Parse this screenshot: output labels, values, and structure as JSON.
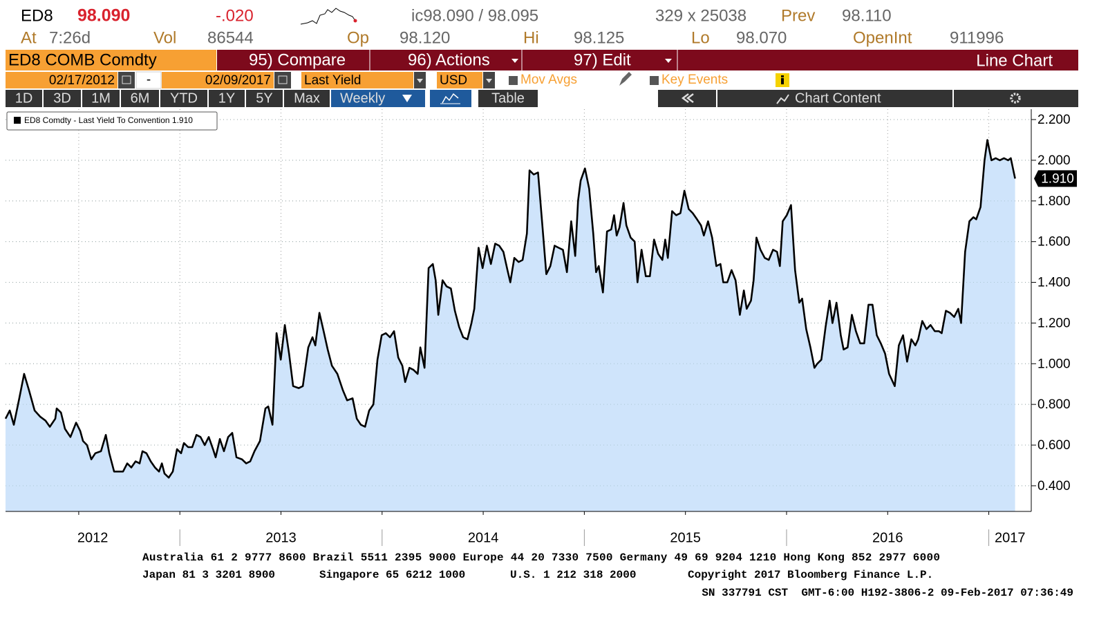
{
  "header": {
    "ticker": "ED8",
    "price": "98.090",
    "change": "-.020",
    "bidask": "ic98.090 / 98.095",
    "size": "329 x 25038",
    "prev_label": "Prev",
    "prev": "98.110",
    "time_label": "At",
    "time": "7:26d",
    "vol_label": "Vol",
    "vol": "86544",
    "op_label": "Op",
    "op": "98.120",
    "hi_label": "Hi",
    "hi": "98.125",
    "lo_label": "Lo",
    "lo": "98.070",
    "oi_label": "OpenInt",
    "oi": "911996"
  },
  "menu": {
    "security": "ED8 COMB Comdty",
    "compare": "95) Compare",
    "actions": "96) Actions",
    "edit": "97) Edit",
    "view": "Line Chart"
  },
  "controls": {
    "start": "02/17/2012",
    "sep": "-",
    "end": "02/09/2017",
    "field": "Last Yield",
    "currency": "USD",
    "mov_avgs": "Mov Avgs",
    "key_events": "Key Events"
  },
  "toolbar": {
    "ranges": [
      "1D",
      "3D",
      "1M",
      "6M",
      "YTD",
      "1Y",
      "5Y",
      "Max"
    ],
    "frequency": "Weekly",
    "table": "Table",
    "chart_content": "Chart Content"
  },
  "chart_data": {
    "type": "line",
    "xlim": [
      2012.138,
      2017.21
    ],
    "xticks": [
      2013,
      2014,
      2015,
      2016,
      2017
    ],
    "xgrid": [
      2012.5,
      2013,
      2013.5,
      2014,
      2014.5,
      2015,
      2015.5,
      2016,
      2016.5,
      2017
    ],
    "year_labels": [
      "2012",
      "2013",
      "2014",
      "2015",
      "2016",
      "2017"
    ],
    "ylim": [
      0.274,
      2.251
    ],
    "yticks": [
      {
        "value": 0.4,
        "label": "0.400"
      },
      {
        "value": 0.6,
        "label": "0.600"
      },
      {
        "value": 0.8,
        "label": "0.800"
      },
      {
        "value": 1.0,
        "label": "1.000"
      },
      {
        "value": 1.2,
        "label": "1.200"
      },
      {
        "value": 1.4,
        "label": "1.400"
      },
      {
        "value": 1.6,
        "label": "1.600"
      },
      {
        "value": 1.8,
        "label": "1.800"
      },
      {
        "value": 2.0,
        "label": "2.000"
      },
      {
        "value": 2.2,
        "label": "2.200"
      }
    ],
    "grid": true,
    "fill_color": "#cfe4fb",
    "series": [
      {
        "name": "ED8 Comdty - Last Yield To Convention 1.910",
        "color": "#000000",
        "last_label": "1.910",
        "x": [
          2012.138,
          2012.159,
          2012.179,
          2012.206,
          2012.23,
          2012.254,
          2012.282,
          2012.309,
          2012.336,
          2012.357,
          2012.384,
          2012.391,
          2012.412,
          2012.432,
          2012.459,
          2012.487,
          2012.507,
          2012.521,
          2012.541,
          2012.562,
          2012.582,
          2012.61,
          2012.634,
          2012.651,
          2012.675,
          2012.699,
          2012.719,
          2012.74,
          2012.76,
          2012.781,
          2012.801,
          2012.815,
          2012.835,
          2012.856,
          2012.877,
          2012.897,
          2012.911,
          2012.924,
          2012.945,
          2012.965,
          2012.986,
          2013.006,
          2013.02,
          2013.041,
          2013.061,
          2013.082,
          2013.102,
          2013.123,
          2013.143,
          2013.164,
          2013.177,
          2013.198,
          2013.218,
          2013.239,
          2013.259,
          2013.28,
          2013.307,
          2013.328,
          2013.348,
          2013.369,
          2013.396,
          2013.423,
          2013.437,
          2013.458,
          2013.478,
          2013.499,
          2013.519,
          2013.54,
          2013.56,
          2013.588,
          2013.608,
          2013.635,
          2013.656,
          2013.67,
          2013.69,
          2013.711,
          2013.731,
          2013.752,
          2013.779,
          2013.806,
          2013.827,
          2013.854,
          2013.875,
          2013.895,
          2013.916,
          2013.936,
          2013.957,
          2013.977,
          2013.998,
          2014.018,
          2014.039,
          2014.059,
          2014.08,
          2014.1,
          2014.114,
          2014.135,
          2014.155,
          2014.176,
          2014.189,
          2014.21,
          2014.23,
          2014.251,
          2014.265,
          2014.278,
          2014.299,
          2014.319,
          2014.34,
          2014.36,
          2014.381,
          2014.401,
          2014.422,
          2014.442,
          2014.456,
          2014.477,
          2014.497,
          2014.518,
          2014.538,
          2014.559,
          2014.579,
          2014.6,
          2014.62,
          2014.634,
          2014.654,
          2014.675,
          2014.695,
          2014.716,
          2014.729,
          2014.75,
          2014.771,
          2014.791,
          2014.812,
          2014.832,
          2014.853,
          2014.873,
          2014.894,
          2014.914,
          2014.935,
          2014.955,
          2014.969,
          2014.982,
          2015.003,
          2015.024,
          2015.044,
          2015.058,
          2015.071,
          2015.092,
          2015.112,
          2015.133,
          2015.147,
          2015.16,
          2015.174,
          2015.194,
          2015.208,
          2015.229,
          2015.249,
          2015.263,
          2015.283,
          2015.304,
          2015.324,
          2015.345,
          2015.365,
          2015.386,
          2015.4,
          2015.413,
          2015.434,
          2015.454,
          2015.475,
          2015.495,
          2015.516,
          2015.536,
          2015.557,
          2015.577,
          2015.591,
          2015.612,
          2015.632,
          2015.653,
          2015.673,
          2015.687,
          2015.707,
          2015.728,
          2015.748,
          2015.769,
          2015.789,
          2015.803,
          2015.824,
          2015.837,
          2015.851,
          2015.871,
          2015.892,
          2015.912,
          2015.933,
          2015.953,
          2015.967,
          2015.981,
          2016.001,
          2016.022,
          2016.042,
          2016.063,
          2016.077,
          2016.097,
          2016.118,
          2016.138,
          2016.152,
          2016.172,
          2016.193,
          2016.213,
          2016.227,
          2016.247,
          2016.268,
          2016.282,
          2016.302,
          2016.323,
          2016.343,
          2016.364,
          2016.384,
          2016.405,
          2016.425,
          2016.446,
          2016.466,
          2016.487,
          2016.507,
          2016.535,
          2016.555,
          2016.576,
          2016.596,
          2016.617,
          2016.637,
          2016.651,
          2016.671,
          2016.692,
          2016.712,
          2016.733,
          2016.753,
          2016.767,
          2016.788,
          2016.808,
          2016.829,
          2016.849,
          2016.863,
          2016.883,
          2016.904,
          2016.924,
          2016.938,
          2016.959,
          2016.979,
          2016.993,
          2017.013,
          2017.034,
          2017.054,
          2017.075,
          2017.095,
          2017.109,
          2017.13
        ],
        "values": [
          0.73,
          0.77,
          0.7,
          0.83,
          0.95,
          0.87,
          0.77,
          0.74,
          0.72,
          0.69,
          0.73,
          0.78,
          0.76,
          0.68,
          0.64,
          0.71,
          0.67,
          0.62,
          0.6,
          0.53,
          0.56,
          0.57,
          0.65,
          0.56,
          0.47,
          0.47,
          0.47,
          0.51,
          0.49,
          0.52,
          0.51,
          0.57,
          0.56,
          0.52,
          0.49,
          0.47,
          0.51,
          0.46,
          0.44,
          0.47,
          0.58,
          0.56,
          0.61,
          0.59,
          0.59,
          0.65,
          0.64,
          0.6,
          0.64,
          0.58,
          0.54,
          0.63,
          0.57,
          0.64,
          0.66,
          0.54,
          0.53,
          0.51,
          0.52,
          0.57,
          0.62,
          0.78,
          0.79,
          0.7,
          1.15,
          1.02,
          1.19,
          1.05,
          0.89,
          0.88,
          0.89,
          1.08,
          1.13,
          1.09,
          1.25,
          1.16,
          1.07,
          0.99,
          0.95,
          0.87,
          0.82,
          0.83,
          0.73,
          0.7,
          0.69,
          0.77,
          0.8,
          1.02,
          1.14,
          1.15,
          1.13,
          1.16,
          1.03,
          0.99,
          0.91,
          0.98,
          0.97,
          0.95,
          1.08,
          0.98,
          1.47,
          1.49,
          1.41,
          1.24,
          1.41,
          1.38,
          1.37,
          1.26,
          1.18,
          1.13,
          1.12,
          1.2,
          1.27,
          1.57,
          1.47,
          1.58,
          1.49,
          1.59,
          1.58,
          1.55,
          1.46,
          1.4,
          1.52,
          1.5,
          1.51,
          1.64,
          1.95,
          1.93,
          1.94,
          1.7,
          1.44,
          1.48,
          1.58,
          1.57,
          1.56,
          1.45,
          1.7,
          1.53,
          1.8,
          1.9,
          1.96,
          1.86,
          1.64,
          1.45,
          1.48,
          1.35,
          1.65,
          1.66,
          1.73,
          1.63,
          1.67,
          1.79,
          1.68,
          1.62,
          1.6,
          1.4,
          1.56,
          1.43,
          1.43,
          1.61,
          1.54,
          1.51,
          1.61,
          1.52,
          1.75,
          1.73,
          1.74,
          1.85,
          1.76,
          1.74,
          1.71,
          1.68,
          1.63,
          1.7,
          1.62,
          1.48,
          1.49,
          1.4,
          1.4,
          1.46,
          1.41,
          1.24,
          1.36,
          1.27,
          1.31,
          1.41,
          1.62,
          1.56,
          1.52,
          1.51,
          1.56,
          1.55,
          1.48,
          1.7,
          1.73,
          1.78,
          1.46,
          1.3,
          1.32,
          1.17,
          1.08,
          0.98,
          1.0,
          1.02,
          1.18,
          1.31,
          1.2,
          1.3,
          1.14,
          1.07,
          1.08,
          1.24,
          1.16,
          1.1,
          1.1,
          1.29,
          1.29,
          1.14,
          1.1,
          1.05,
          0.95,
          0.89,
          1.09,
          1.14,
          1.01,
          1.12,
          1.09,
          1.12,
          1.21,
          1.17,
          1.19,
          1.16,
          1.16,
          1.15,
          1.26,
          1.25,
          1.23,
          1.27,
          1.2,
          1.55,
          1.7,
          1.72,
          1.71,
          1.77,
          2.0,
          2.1,
          2.0,
          2.01,
          2.0,
          2.01,
          2.0,
          2.01,
          1.91
        ]
      }
    ]
  },
  "footer": {
    "line1": "Australia 61 2 9777 8600 Brazil 5511 2395 9000 Europe 44 20 7330 7500 Germany 49 69 9204 1210 Hong Kong 852 2977 6000",
    "line2": [
      "Japan 81 3 3201 8900",
      "Singapore 65 6212 1000",
      "U.S. 1 212 318 2000",
      "Copyright 2017 Bloomberg Finance L.P."
    ],
    "line3": "SN 337791 CST  GMT-6:00 H192-3806-2 09-Feb-2017 07:36:49"
  }
}
